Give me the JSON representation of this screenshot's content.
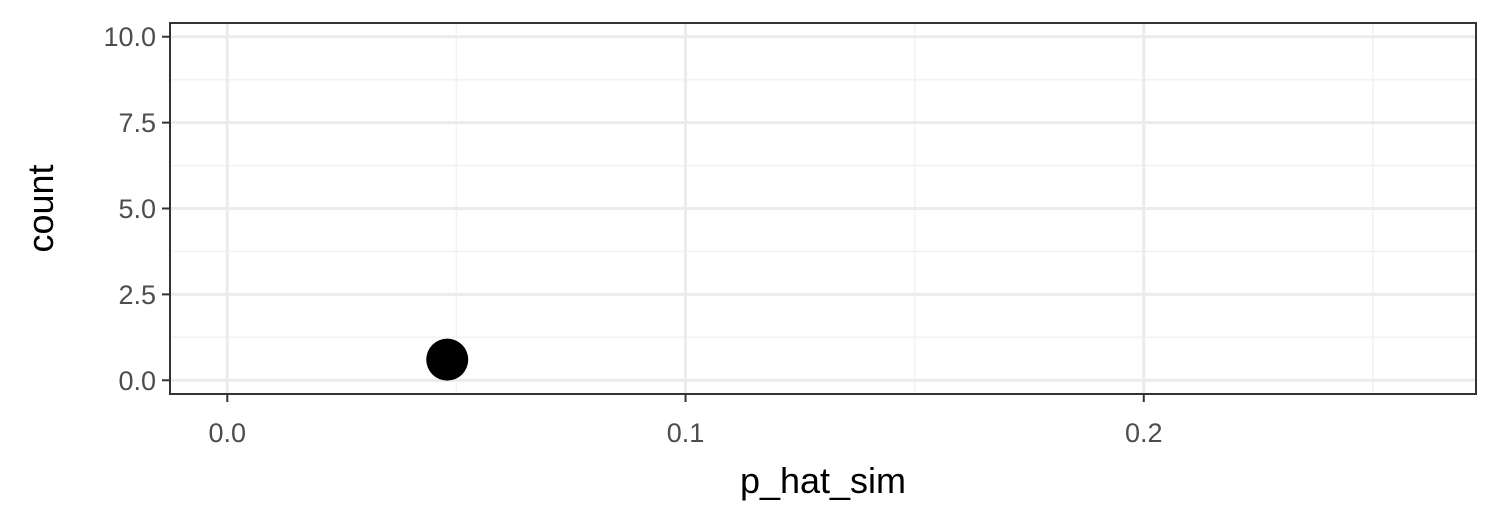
{
  "chart_data": {
    "type": "scatter",
    "title": "",
    "xlabel": "p_hat_sim",
    "ylabel": "count",
    "xlim": [
      -0.0125,
      0.2725
    ],
    "ylim": [
      -0.4,
      10.4
    ],
    "x_ticks": [
      0.0,
      0.1,
      0.2
    ],
    "x_tick_labels": [
      "0.0",
      "0.1",
      "0.2"
    ],
    "x_minor_ticks": [
      0.05,
      0.15,
      0.25
    ],
    "y_ticks": [
      0.0,
      2.5,
      5.0,
      7.5,
      10.0
    ],
    "y_tick_labels": [
      "0.0",
      "2.5",
      "5.0",
      "7.5",
      "10.0"
    ],
    "y_minor_ticks": [
      1.25,
      3.75,
      6.25,
      8.75
    ],
    "grid": true,
    "legend": "none",
    "points": [
      {
        "x": 0.048,
        "y": 0.6
      }
    ],
    "colors": {
      "point": "#000000",
      "grid_major": "#ebebeb",
      "grid_minor": "#f2f2f2",
      "panel_border": "#333333",
      "tick_text": "#4d4d4d",
      "axis_title": "#000000"
    }
  }
}
